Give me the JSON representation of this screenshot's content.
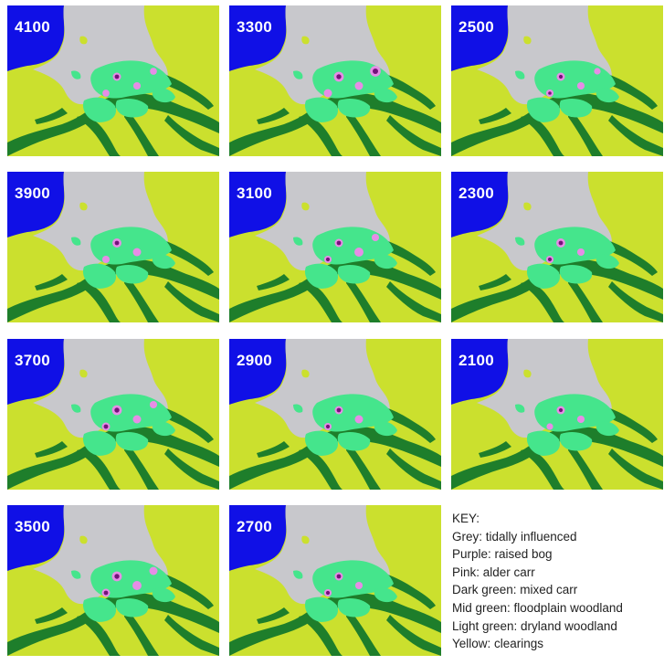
{
  "panels": [
    {
      "label": "4100",
      "sites": [
        [
          "purple",
          1.0,
          0.8
        ],
        [
          "pink",
          0.9,
          0.8
        ],
        [
          "pink",
          0.85,
          0.8
        ],
        [
          "pink",
          0.85,
          0.7
        ]
      ]
    },
    {
      "label": "3300",
      "sites": [
        [
          "purple",
          1.2,
          0.9
        ],
        [
          "pink",
          1.0,
          0.8
        ],
        [
          "pink",
          1.0,
          0.9
        ],
        [
          "purple",
          1.3,
          1.0
        ]
      ]
    },
    {
      "label": "2500",
      "sites": [
        [
          "purple",
          1.0,
          0.7
        ],
        [
          "pink",
          0.9,
          0.8
        ],
        [
          "purple",
          0.9,
          0.6
        ],
        [
          "pink",
          0.8,
          0.7
        ]
      ]
    },
    {
      "label": "3900",
      "sites": [
        [
          "purple",
          1.1,
          0.8
        ],
        [
          "pink",
          1.0,
          0.8
        ],
        [
          "pink",
          0.9,
          0.7
        ]
      ]
    },
    {
      "label": "3100",
      "sites": [
        [
          "purple",
          1.0,
          0.8
        ],
        [
          "pink",
          1.1,
          0.9
        ],
        [
          "purple",
          0.9,
          0.7
        ],
        [
          "pink",
          0.9,
          0.6
        ]
      ]
    },
    {
      "label": "2300",
      "sites": [
        [
          "purple",
          1.1,
          0.8
        ],
        [
          "pink",
          0.9,
          0.9
        ],
        [
          "purple",
          0.9,
          0.7
        ]
      ]
    },
    {
      "label": "3700",
      "sites": [
        [
          "purple",
          1.2,
          0.9
        ],
        [
          "pink",
          1.0,
          0.8
        ],
        [
          "purple",
          1.0,
          0.8
        ],
        [
          "pink",
          0.9,
          0.7
        ]
      ]
    },
    {
      "label": "2900",
      "sites": [
        [
          "purple",
          1.0,
          0.8
        ],
        [
          "pink",
          1.0,
          0.9
        ],
        [
          "purple",
          0.9,
          0.7
        ]
      ]
    },
    {
      "label": "2100",
      "sites": [
        [
          "purple",
          1.0,
          0.7
        ],
        [
          "pink",
          0.9,
          0.8
        ],
        [
          "pink",
          0.8,
          0.7
        ]
      ]
    },
    {
      "label": "3500",
      "sites": [
        [
          "purple",
          1.2,
          0.9
        ],
        [
          "pink",
          1.1,
          0.9
        ],
        [
          "purple",
          1.0,
          0.8
        ],
        [
          "pink",
          1.0,
          0.8
        ]
      ]
    },
    {
      "label": "2700",
      "sites": [
        [
          "purple",
          1.0,
          0.8
        ],
        [
          "pink",
          0.9,
          0.8
        ],
        [
          "purple",
          0.9,
          0.7
        ]
      ]
    }
  ],
  "key": {
    "title": "KEY:",
    "items": [
      {
        "text": "Grey: tidally influenced",
        "color": "#c8c8cc"
      },
      {
        "text": "Purple: raised bog",
        "color": "#7a1f86"
      },
      {
        "text": "Pink: alder carr",
        "color": "#e58be6"
      },
      {
        "text": "Dark green: mixed carr",
        "color": "#1f7a2a"
      },
      {
        "text": "Mid green: floodplain  woodland",
        "color": "#48e08c"
      },
      {
        "text": "Light green: dryland  woodland",
        "color": "#c6e32e"
      },
      {
        "text": "Yellow: clearings",
        "color": "#e3e83a"
      }
    ]
  },
  "colors": {
    "sea": "#1010e6",
    "tidal": "#c8c8cc",
    "dryland": "#cbe02e",
    "mixed_carr": "#1e7e2b",
    "floodplain": "#45e58c",
    "raised_bog": "#74127a",
    "alder_carr": "#e68de6"
  }
}
